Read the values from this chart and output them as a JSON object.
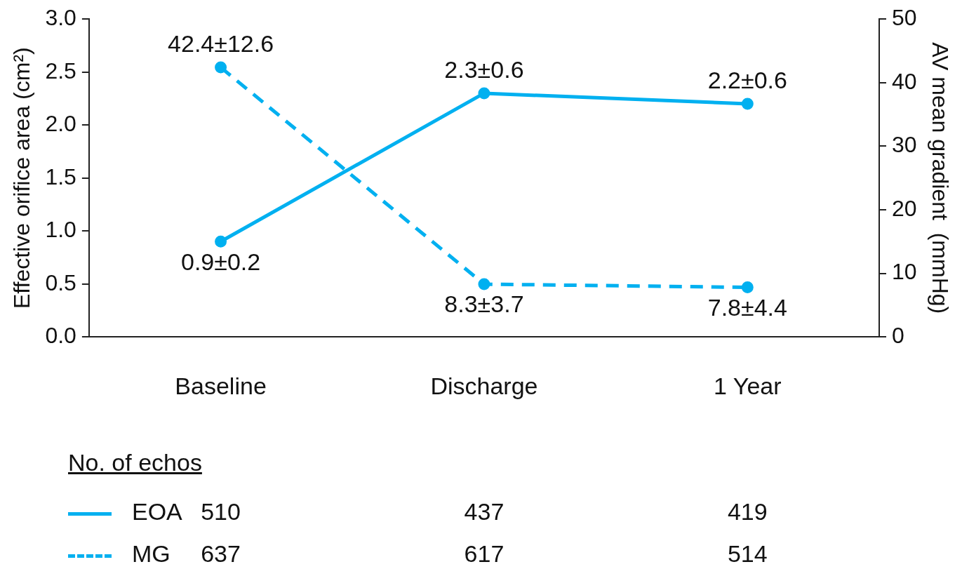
{
  "chart_data": {
    "type": "line",
    "categories": [
      "Baseline",
      "Discharge",
      "1 Year"
    ],
    "ylabel": "Effective orifice area (cm²)",
    "y2label": "AV mean gradient  (mmHg)",
    "ylim": [
      0,
      3
    ],
    "yticks": [
      {
        "value": 0,
        "label": "0.0"
      },
      {
        "value": 0.5,
        "label": "0.5"
      },
      {
        "value": 1,
        "label": "1.0"
      },
      {
        "value": 1.5,
        "label": "1.5"
      },
      {
        "value": 2,
        "label": "2.0"
      },
      {
        "value": 2.5,
        "label": "2.5"
      },
      {
        "value": 3,
        "label": "3.0"
      }
    ],
    "y2lim": [
      0,
      50
    ],
    "y2ticks": [
      0,
      10,
      20,
      30,
      40,
      50
    ],
    "series": [
      {
        "name": "EOA",
        "color": "#00b0f0",
        "values": [
          0.9,
          2.3,
          2.2
        ],
        "value_labels": [
          "0.9±0.2",
          "2.3±0.6",
          "2.2±0.6"
        ],
        "line_style": "solid"
      },
      {
        "name": "MG",
        "color": "#00b0f0",
        "values": [
          42.4,
          8.3,
          7.8
        ],
        "value_labels": [
          "42.4±12.6",
          "8.3±3.7",
          "7.8±4.4"
        ],
        "line_style": "dashed",
        "axis": "y2"
      }
    ],
    "marker": "circle",
    "legend": "bottom",
    "annotations": [
      "No. of echos",
      "510",
      "437",
      "419",
      "637",
      "617",
      "514"
    ]
  }
}
